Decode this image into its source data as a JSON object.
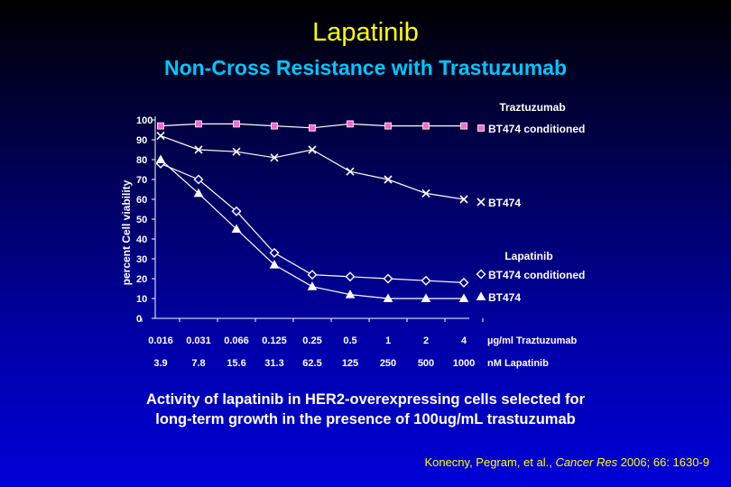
{
  "slide": {
    "title": "Lapatinib",
    "subtitle": "Non-Cross Resistance with Trastuzumab",
    "caption_line1": "Activity of lapatinib in HER2-overexpressing cells selected for",
    "caption_line2": "long-term growth in the presence of 100ug/mL trastuzumab",
    "citation_authors": "Konecny, Pegram, et al., ",
    "citation_journal": "Cancer Res",
    "citation_details": " 2006; 66: 1630-9"
  },
  "chart_data": {
    "type": "line",
    "ylabel": "percent Cell viability",
    "ylim": [
      0,
      100
    ],
    "yticks": [
      0,
      10,
      20,
      30,
      40,
      50,
      60,
      70,
      80,
      90,
      100
    ],
    "categories": [
      "0.016",
      "0.031",
      "0.066",
      "0.125",
      "0.25",
      "0.5",
      "1",
      "2",
      "4"
    ],
    "x_secondary": [
      "3.9",
      "7.8",
      "15.6",
      "31.3",
      "62.5",
      "125",
      "250",
      "500",
      "1000"
    ],
    "xlabel": "µg/ml Traztuzumab",
    "xlabel_secondary": "nM Lapatinib",
    "group_labels": [
      "Traztuzumab",
      "Lapatinib"
    ],
    "series": [
      {
        "name": "BT474 conditioned",
        "group": "Traztuzumab",
        "marker": "square",
        "color": "#ff66cc",
        "values": [
          97,
          98,
          98,
          97,
          96,
          98,
          97,
          97,
          97
        ]
      },
      {
        "name": "BT474",
        "group": "Traztuzumab",
        "marker": "x",
        "color": "#ffffff",
        "values": [
          92,
          85,
          84,
          81,
          85,
          74,
          70,
          63,
          60
        ]
      },
      {
        "name": "BT474 conditioned",
        "group": "Lapatinib",
        "marker": "diamond",
        "color": "#ffffff",
        "values": [
          78,
          70,
          54,
          33,
          22,
          21,
          20,
          19,
          18
        ]
      },
      {
        "name": "BT474",
        "group": "Lapatinib",
        "marker": "triangle",
        "color": "#ffffff",
        "values": [
          80,
          63,
          45,
          27,
          16,
          12,
          10,
          10,
          10
        ]
      }
    ],
    "grid": false,
    "legend_position": "right"
  }
}
